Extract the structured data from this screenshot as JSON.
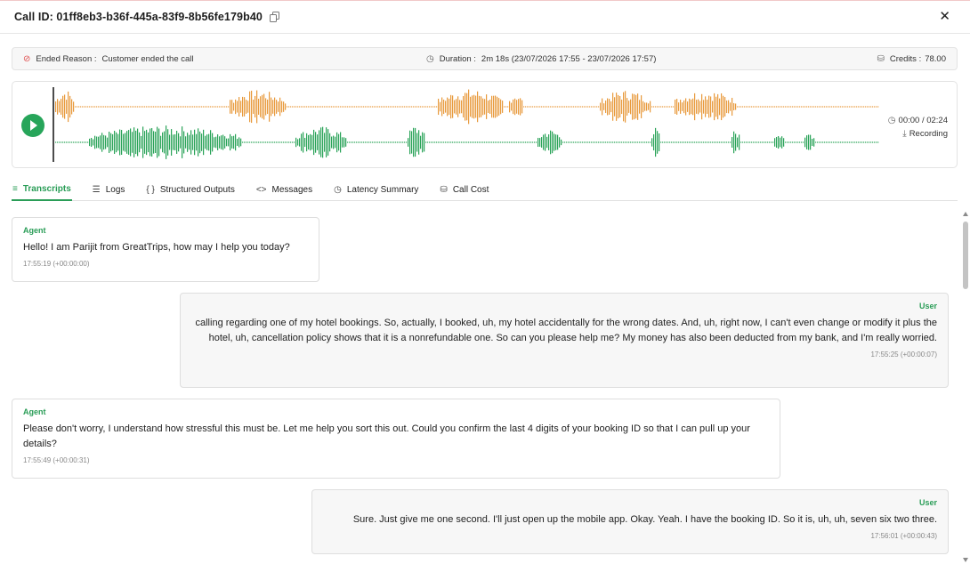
{
  "header": {
    "title": "Call ID: 01ff8eb3-b36f-445a-83f9-8b56fe179b40",
    "copy_icon": "copy-icon",
    "close_label": "✕"
  },
  "info": {
    "ended_label": "Ended Reason :",
    "ended_value": "Customer ended the call",
    "duration_label": "Duration :",
    "duration_value": "2m 18s (23/07/2026 17:55 - 23/07/2026 17:57)",
    "credits_label": "Credits :",
    "credits_value": "78.00"
  },
  "player": {
    "time": "00:00 / 02:24",
    "recording_label": "Recording",
    "colors": {
      "agent": "#e89a3c",
      "user": "#2aa358",
      "play": "#27a55a"
    }
  },
  "tabs": [
    {
      "label": "Transcripts",
      "icon": "lines-icon",
      "active": true
    },
    {
      "label": "Logs",
      "icon": "list-icon"
    },
    {
      "label": "Structured Outputs",
      "icon": "braces-icon"
    },
    {
      "label": "Messages",
      "icon": "code-icon"
    },
    {
      "label": "Latency Summary",
      "icon": "clock-icon"
    },
    {
      "label": "Call Cost",
      "icon": "coins-icon"
    }
  ],
  "messages": [
    {
      "speaker": "Agent",
      "text": "Hello! I am Parijit from GreatTrips, how may I help you today?",
      "time": "17:55:19 (+00:00:00)"
    },
    {
      "speaker": "User",
      "text": "calling regarding one of my hotel bookings. So, actually, I booked, uh, my hotel accidentally for the wrong dates. And, uh, right now, I can't even change or modify it plus the hotel, uh, cancellation policy shows that it is a nonrefundable one. So can you please help me? My money has also been deducted from my bank, and I'm really worried.",
      "time": "17:55:25 (+00:00:07)"
    },
    {
      "speaker": "Agent",
      "text": "Please don't worry, I understand how stressful this must be. Let me help you sort this out. Could you confirm the last 4 digits of your booking ID so that I can pull up your details?",
      "time": "17:55:49 (+00:00:31)"
    },
    {
      "speaker": "User",
      "text": "Sure. Just give me one second. I'll just open up the mobile app. Okay. Yeah. I have the booking ID. So it is, uh, uh, seven six two three.",
      "time": "17:56:01 (+00:00:43)"
    }
  ]
}
